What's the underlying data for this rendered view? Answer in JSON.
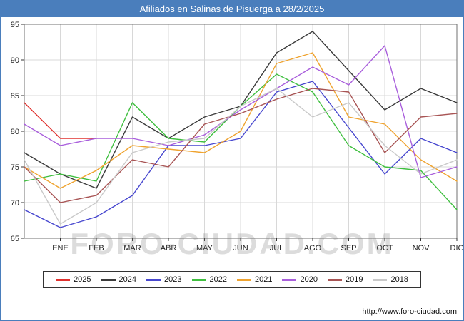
{
  "header": {
    "title": "Afiliados en Salinas de Pisuerga a 28/2/2025",
    "bar_color": "#4a7ebc"
  },
  "watermark": {
    "text": "FORO-CIUDAD.COM"
  },
  "footer": {
    "url": "http://www.foro-ciudad.com"
  },
  "chart_data": {
    "type": "line",
    "title": "Afiliados en Salinas de Pisuerga a 28/2/2025",
    "xlabel": "",
    "ylabel": "",
    "ylim": [
      65,
      95
    ],
    "yticks": [
      65,
      70,
      75,
      80,
      85,
      90,
      95
    ],
    "grid": true,
    "legend_position": "bottom",
    "categories": [
      "",
      "ENE",
      "FEB",
      "MAR",
      "ABR",
      "MAY",
      "JUN",
      "JUL",
      "AGO",
      "SEP",
      "OCT",
      "NOV",
      "DIC"
    ],
    "series": [
      {
        "name": "2025",
        "color": "#e0312e",
        "values": [
          84,
          79,
          79,
          null,
          null,
          null,
          null,
          null,
          null,
          null,
          null,
          null,
          null
        ]
      },
      {
        "name": "2024",
        "color": "#3b3b3b",
        "values": [
          77,
          74,
          72,
          82,
          79,
          82,
          83.5,
          91,
          94,
          88.5,
          83,
          86,
          84
        ]
      },
      {
        "name": "2023",
        "color": "#4747cf",
        "values": [
          69,
          66.5,
          68,
          71,
          78,
          78,
          79,
          85.5,
          87,
          80.5,
          74,
          79,
          77
        ]
      },
      {
        "name": "2022",
        "color": "#3fbf3f",
        "values": [
          73,
          74,
          73,
          84,
          79,
          78.5,
          83.5,
          88,
          85.5,
          78,
          75,
          74.5,
          69
        ]
      },
      {
        "name": "2021",
        "color": "#efa32f",
        "values": [
          75,
          72,
          74.5,
          78,
          77.5,
          77,
          80,
          89.5,
          91,
          82,
          81,
          76,
          73
        ]
      },
      {
        "name": "2020",
        "color": "#a95fdc",
        "values": [
          81,
          78,
          79,
          79,
          78,
          79.5,
          83,
          86,
          89,
          86.5,
          92,
          73.5,
          75
        ]
      },
      {
        "name": "2019",
        "color": "#a85454",
        "values": [
          75,
          70,
          71,
          76,
          75,
          81,
          82.5,
          84.5,
          86,
          85.5,
          77,
          82,
          82.5
        ]
      },
      {
        "name": "2018",
        "color": "#c9c9c9",
        "values": [
          76,
          67,
          70,
          77,
          78.5,
          79,
          83.5,
          86,
          82,
          84,
          78,
          74,
          76
        ]
      }
    ]
  }
}
